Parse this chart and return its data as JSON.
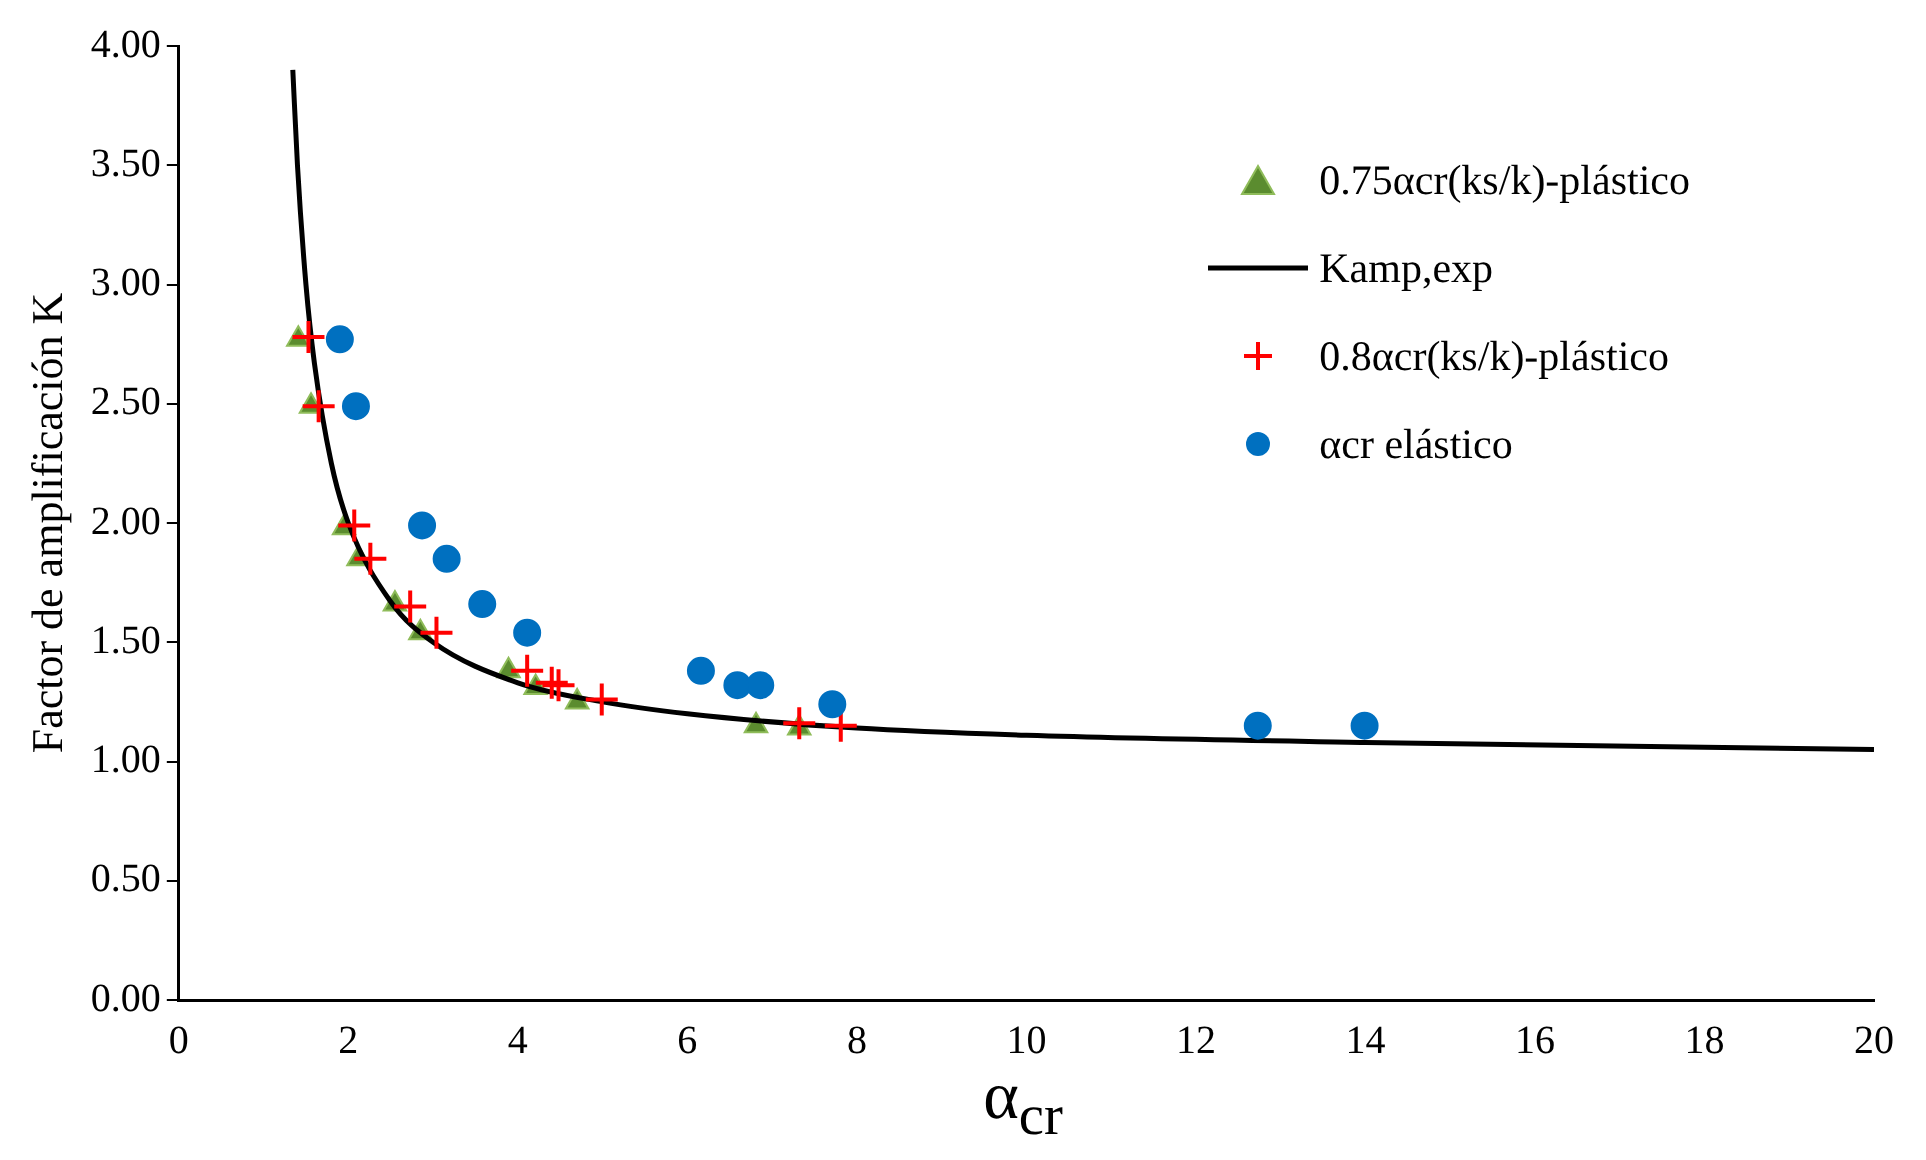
{
  "chart_data": {
    "type": "scatter",
    "xlabel": "α$_{cr}$",
    "ylabel": "Factor de amplificación K",
    "xlim": [
      0,
      20
    ],
    "xticks": [
      0,
      2,
      4,
      6,
      8,
      10,
      12,
      14,
      16,
      18,
      20
    ],
    "ylim": [
      0,
      4
    ],
    "yticks": [
      {
        "value": 0,
        "label": "0.00"
      },
      {
        "value": 0.5,
        "label": "0.50"
      },
      {
        "value": 1,
        "label": "1.00"
      },
      {
        "value": 1.5,
        "label": "1.50"
      },
      {
        "value": 2,
        "label": "2.00"
      },
      {
        "value": 2.5,
        "label": "2.50"
      },
      {
        "value": 3,
        "label": "3.00"
      },
      {
        "value": 3.5,
        "label": "3.50"
      },
      {
        "value": 4,
        "label": "4.00"
      }
    ],
    "grid": false,
    "legend": "top right",
    "series": [
      {
        "name": "0.75αcr(ks/k)-plástico",
        "type": "scatter",
        "marker": "triangle",
        "color": "#5b8c2f",
        "x": [
          1.41,
          1.56,
          1.95,
          2.12,
          2.55,
          2.85,
          3.89,
          4.21,
          4.7,
          6.81,
          7.32
        ],
        "values": [
          2.77,
          2.49,
          1.98,
          1.85,
          1.66,
          1.54,
          1.38,
          1.31,
          1.25,
          1.15,
          1.14
        ]
      },
      {
        "name": "Kamp,exp",
        "type": "line",
        "marker": "none",
        "color": "#000000",
        "x": [
          1.345,
          1.4,
          1.5,
          1.6,
          1.8,
          2,
          2.5,
          3,
          4,
          5,
          6,
          8,
          10,
          14,
          20
        ],
        "values": [
          3.9,
          3.5,
          3.0,
          2.67,
          2.25,
          2.0,
          1.67,
          1.5,
          1.33,
          1.25,
          1.2,
          1.14,
          1.11,
          1.08,
          1.05
        ]
      },
      {
        "name": "0.8αcr(ks/k)-plástico",
        "type": "scatter",
        "marker": "cross",
        "color": "#ff0000",
        "x": [
          1.53,
          1.65,
          2.07,
          2.26,
          2.73,
          3.04,
          4.11,
          4.4,
          4.48,
          4.99,
          7.32,
          7.81
        ],
        "values": [
          2.78,
          2.49,
          1.99,
          1.85,
          1.65,
          1.54,
          1.38,
          1.33,
          1.32,
          1.26,
          1.16,
          1.15
        ]
      },
      {
        "name": "αcr elástico",
        "type": "scatter",
        "marker": "circle",
        "color": "#0070c0",
        "x": [
          1.9,
          2.09,
          2.87,
          3.16,
          3.58,
          4.11,
          6.16,
          6.59,
          6.86,
          7.71,
          12.73,
          13.99
        ],
        "values": [
          2.77,
          2.49,
          1.99,
          1.85,
          1.66,
          1.54,
          1.38,
          1.32,
          1.32,
          1.24,
          1.15,
          1.15
        ]
      }
    ]
  }
}
